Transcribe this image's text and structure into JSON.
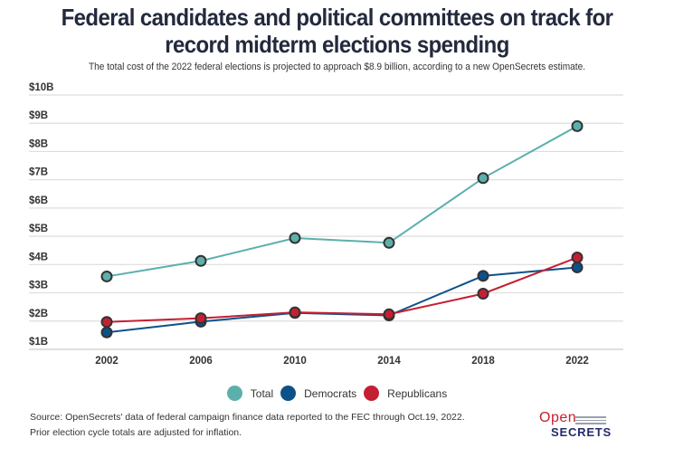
{
  "header": {
    "title_line1": "Federal candidates and political committees on track for",
    "title_line2": "record midterm elections spending",
    "subtitle": "The total cost of the 2022 federal elections is projected to approach $8.9 billion, according to a new OpenSecrets estimate."
  },
  "chart_data": {
    "type": "line",
    "title": "Federal candidates and political committees on track for record midterm elections spending",
    "subtitle": "The total cost of the 2022 federal elections is projected to approach $8.9 billion, according to a new OpenSecrets estimate.",
    "xlabel": "",
    "ylabel": "",
    "x": [
      "2002",
      "2006",
      "2010",
      "2014",
      "2018",
      "2022"
    ],
    "ylim": [
      1,
      10
    ],
    "y_ticks": [
      1,
      2,
      3,
      4,
      5,
      6,
      7,
      8,
      9,
      10
    ],
    "y_tick_labels": [
      "$1B",
      "$2B",
      "$3B",
      "$4B",
      "$5B",
      "$6B",
      "$7B",
      "$8B",
      "$9B",
      "$10B"
    ],
    "grid": true,
    "legend_position": "bottom-center",
    "units": "billions of USD",
    "series": [
      {
        "name": "Total",
        "color": "#5bb0ab",
        "values": [
          3.58,
          4.13,
          4.94,
          4.77,
          7.06,
          8.9
        ]
      },
      {
        "name": "Democrats",
        "color": "#0d5189",
        "values": [
          1.6,
          1.98,
          2.29,
          2.2,
          3.6,
          3.9
        ]
      },
      {
        "name": "Republicans",
        "color": "#c41f33",
        "values": [
          1.97,
          2.1,
          2.31,
          2.24,
          2.97,
          4.25
        ]
      }
    ]
  },
  "legend": [
    {
      "label": "Total",
      "color": "#5bb0ab"
    },
    {
      "label": "Democrats",
      "color": "#0d5189"
    },
    {
      "label": "Republicans",
      "color": "#c41f33"
    }
  ],
  "footer": {
    "source_line1": "Source: OpenSecrets' data of federal campaign finance data reported to the FEC through Oct.19, 2022.",
    "source_line2": "Prior election cycle totals are adjusted for inflation."
  },
  "logo": {
    "open": "Open",
    "secrets": "SECRETS"
  },
  "colors": {
    "title": "#232a3d",
    "grid": "#dddddd",
    "marker_stroke": "#333333"
  }
}
